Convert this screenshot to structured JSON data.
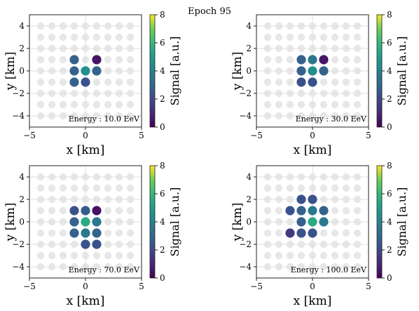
{
  "figure": {
    "suptitle": "Epoch 95"
  },
  "colorbar": {
    "label": "Signal [a.u.]",
    "ticks": [
      0,
      2,
      4,
      6,
      8
    ],
    "range": [
      0,
      8
    ],
    "colormap": "viridis"
  },
  "chart_data": [
    {
      "type": "scatter",
      "annotation": "Energy : 10.0 EeV",
      "xlabel": "x [km]",
      "ylabel": "y [km]",
      "xlim": [
        -5,
        5
      ],
      "ylim": [
        -5,
        5
      ],
      "xticks": [
        -5,
        0,
        5
      ],
      "yticks": [
        -4,
        -2,
        0,
        2,
        4
      ],
      "grid": true,
      "points": [
        {
          "x": -1,
          "y": 1,
          "signal": 2.8
        },
        {
          "x": 1,
          "y": 1,
          "signal": 0.5
        },
        {
          "x": -1,
          "y": 0,
          "signal": 2.8
        },
        {
          "x": 0,
          "y": 0,
          "signal": 4.5
        },
        {
          "x": 1,
          "y": 0,
          "signal": 2.8
        },
        {
          "x": -1,
          "y": -1,
          "signal": 2.8
        },
        {
          "x": 0,
          "y": -1,
          "signal": 2.3
        }
      ]
    },
    {
      "type": "scatter",
      "annotation": "Energy : 30.0 EeV",
      "xlabel": "x [km]",
      "ylabel": "y [km]",
      "xlim": [
        -5,
        5
      ],
      "ylim": [
        -5,
        5
      ],
      "xticks": [
        -5,
        0,
        5
      ],
      "yticks": [
        -4,
        -2,
        0,
        2,
        4
      ],
      "grid": true,
      "points": [
        {
          "x": -1,
          "y": 1,
          "signal": 2.8
        },
        {
          "x": 0,
          "y": 1,
          "signal": 3.6
        },
        {
          "x": 1,
          "y": 1,
          "signal": 0.5
        },
        {
          "x": -1,
          "y": 0,
          "signal": 2.8
        },
        {
          "x": 0,
          "y": 0,
          "signal": 4.5
        },
        {
          "x": 1,
          "y": 0,
          "signal": 2.8
        },
        {
          "x": -1,
          "y": -1,
          "signal": 2.3
        },
        {
          "x": 0,
          "y": -1,
          "signal": 2.3
        }
      ]
    },
    {
      "type": "scatter",
      "annotation": "Energy : 70.0 EeV",
      "xlabel": "x [km]",
      "ylabel": "y [km]",
      "xlim": [
        -5,
        5
      ],
      "ylim": [
        -5,
        5
      ],
      "xticks": [
        -5,
        0,
        5
      ],
      "yticks": [
        -4,
        -2,
        0,
        2,
        4
      ],
      "grid": true,
      "points": [
        {
          "x": -1,
          "y": 1,
          "signal": 2.3
        },
        {
          "x": 0,
          "y": 1,
          "signal": 2.6
        },
        {
          "x": 1,
          "y": 1,
          "signal": 0.4
        },
        {
          "x": -1,
          "y": 0,
          "signal": 2.8
        },
        {
          "x": 0,
          "y": 0,
          "signal": 5.5
        },
        {
          "x": 1,
          "y": 0,
          "signal": 3.6
        },
        {
          "x": -1,
          "y": -1,
          "signal": 2.8
        },
        {
          "x": 0,
          "y": -1,
          "signal": 3.6
        },
        {
          "x": 1,
          "y": -1,
          "signal": 2.8
        },
        {
          "x": 0,
          "y": -2,
          "signal": 2.3
        },
        {
          "x": 1,
          "y": -2,
          "signal": 2.3
        }
      ]
    },
    {
      "type": "scatter",
      "annotation": "Energy : 100.0 EeV",
      "xlabel": "x [km]",
      "ylabel": "y [km]",
      "xlim": [
        -5,
        5
      ],
      "ylim": [
        -5,
        5
      ],
      "xticks": [
        -5,
        0,
        5
      ],
      "yticks": [
        -4,
        -2,
        0,
        2,
        4
      ],
      "grid": true,
      "points": [
        {
          "x": -1,
          "y": 2,
          "signal": 2.3
        },
        {
          "x": 0,
          "y": 2,
          "signal": 2.3
        },
        {
          "x": -2,
          "y": 1,
          "signal": 2.3
        },
        {
          "x": -1,
          "y": 1,
          "signal": 2.8
        },
        {
          "x": 0,
          "y": 1,
          "signal": 3.6
        },
        {
          "x": 1,
          "y": 1,
          "signal": 2.8
        },
        {
          "x": -1,
          "y": 0,
          "signal": 2.8
        },
        {
          "x": 0,
          "y": 0,
          "signal": 5.5
        },
        {
          "x": 1,
          "y": 0,
          "signal": 3.6
        },
        {
          "x": -2,
          "y": -1,
          "signal": 1.5
        },
        {
          "x": -1,
          "y": -1,
          "signal": 2.3
        },
        {
          "x": 0,
          "y": -1,
          "signal": 2.3
        }
      ]
    }
  ]
}
